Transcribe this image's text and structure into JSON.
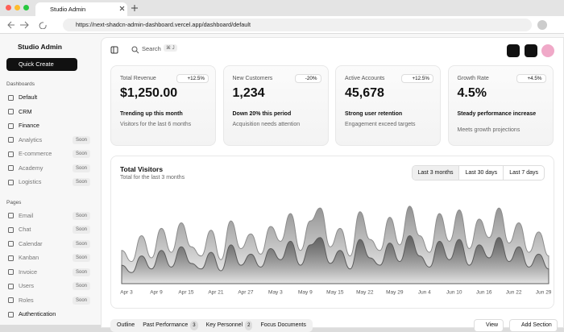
{
  "browser": {
    "tab_title": "Studio Admin",
    "url": "https://next-shadcn-admin-dashboard.vercel.app/dashboard/default"
  },
  "sidebar": {
    "brand": "Studio Admin",
    "quick_create": "Quick Create",
    "sections": [
      {
        "title": "Dashboards",
        "items": [
          {
            "label": "Default"
          },
          {
            "label": "CRM"
          },
          {
            "label": "Finance"
          },
          {
            "label": "Analytics",
            "badge": "Soon"
          },
          {
            "label": "E-commerce",
            "badge": "Soon"
          },
          {
            "label": "Academy",
            "badge": "Soon"
          },
          {
            "label": "Logistics",
            "badge": "Soon"
          }
        ]
      },
      {
        "title": "Pages",
        "items": [
          {
            "label": "Email",
            "badge": "Soon"
          },
          {
            "label": "Chat",
            "badge": "Soon"
          },
          {
            "label": "Calendar",
            "badge": "Soon"
          },
          {
            "label": "Kanban",
            "badge": "Soon"
          },
          {
            "label": "Invoice",
            "badge": "Soon"
          },
          {
            "label": "Users",
            "badge": "Soon"
          },
          {
            "label": "Roles",
            "badge": "Soon"
          },
          {
            "label": "Authentication"
          }
        ]
      }
    ]
  },
  "header": {
    "search": "Search",
    "shortcut": "⌘ J"
  },
  "cards": [
    {
      "label": "Total Revenue",
      "badge": "+12.5%",
      "value": "$1,250.00",
      "trend": "Trending up this month",
      "note": "Visitors for the last 6 months"
    },
    {
      "label": "New Customers",
      "badge": "-20%",
      "value": "1,234",
      "trend": "Down 20% this period",
      "note": "Acquisition needs attention"
    },
    {
      "label": "Active Accounts",
      "badge": "+12.5%",
      "value": "45,678",
      "trend": "Strong user retention",
      "note": "Engagement exceed targets"
    },
    {
      "label": "Growth Rate",
      "badge": "+4.5%",
      "value": "4.5%",
      "trend": "Steady performance increase",
      "note": "Meets growth projections"
    }
  ],
  "chart_controls": [
    "Last 3 months",
    "Last 30 days",
    "Last 7 days"
  ],
  "chart_data": {
    "type": "area",
    "title": "Total Visitors",
    "subtitle": "Total for the last 3 months",
    "categories": [
      "Apr 3",
      null,
      null,
      "Apr 9",
      null,
      null,
      "Apr 15",
      null,
      null,
      "Apr 21",
      null,
      null,
      "Apr 27",
      null,
      null,
      "May 3",
      null,
      null,
      "May 9",
      null,
      null,
      "May 15",
      null,
      null,
      "May 22",
      null,
      null,
      "May 29",
      null,
      null,
      "Jun 4",
      null,
      null,
      "Jun 10",
      null,
      null,
      "Jun 16",
      null,
      null,
      "Jun 22",
      null,
      null,
      "Jun 29",
      null
    ],
    "ylim": [
      0,
      450
    ],
    "series": [
      {
        "color": "#8c8c8c",
        "values": [
          180,
          120,
          260,
          140,
          300,
          170,
          330,
          200,
          150,
          290,
          130,
          340,
          190,
          270,
          160,
          310,
          230,
          380,
          180,
          340,
          410,
          200,
          300,
          150,
          390,
          240,
          180,
          360,
          210,
          420,
          260,
          170,
          380,
          230,
          400,
          190,
          350,
          250,
          410,
          220,
          330,
          170,
          280,
          150
        ]
      },
      {
        "color": "#5c5c5c",
        "values": [
          100,
          60,
          150,
          80,
          180,
          90,
          200,
          110,
          80,
          170,
          70,
          210,
          100,
          160,
          90,
          190,
          130,
          230,
          100,
          210,
          250,
          110,
          180,
          80,
          240,
          140,
          100,
          220,
          120,
          260,
          150,
          90,
          230,
          130,
          240,
          100,
          210,
          140,
          250,
          120,
          200,
          90,
          160,
          80
        ]
      }
    ]
  },
  "tabs": [
    {
      "label": "Outline"
    },
    {
      "label": "Past Performance",
      "badge": "3"
    },
    {
      "label": "Key Personnel",
      "badge": "2"
    },
    {
      "label": "Focus Documents"
    }
  ],
  "actions": [
    "View",
    "Add Section"
  ]
}
